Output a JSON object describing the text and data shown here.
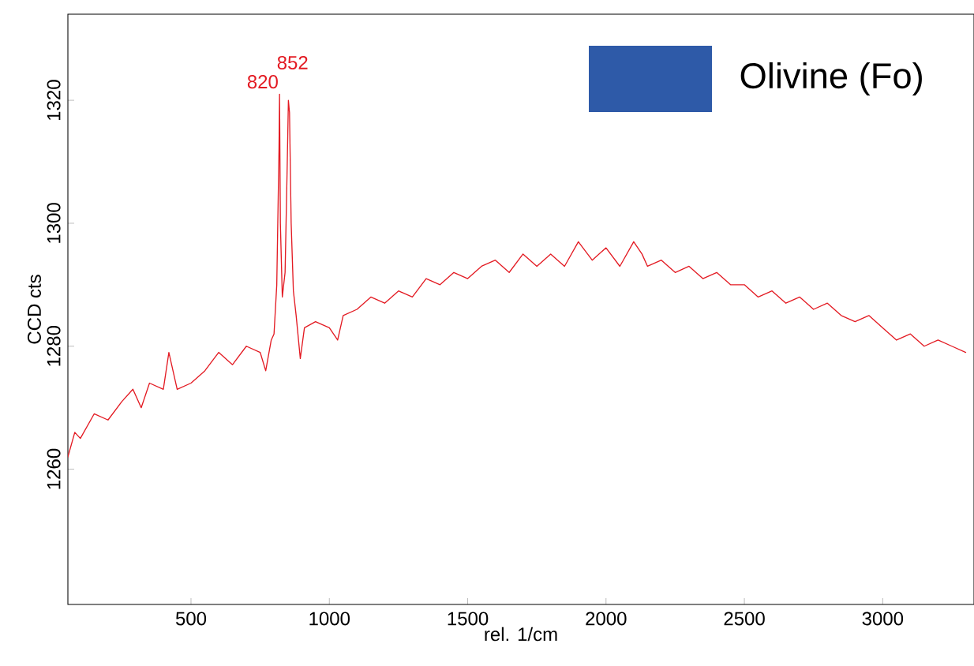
{
  "chart_data": {
    "type": "line",
    "xlabel": "rel. 1/cm",
    "ylabel": "CCD cts",
    "xlim": [
      55,
      3330
    ],
    "ylim": [
      1238,
      1334
    ],
    "xticks": [
      500,
      1000,
      1500,
      2000,
      2500,
      3000
    ],
    "yticks": [
      1260,
      1280,
      1300,
      1320
    ],
    "grid": false,
    "marker": "none",
    "line_style": "solid",
    "annotations": [
      {
        "text": "820",
        "x": 820,
        "y": 1321
      },
      {
        "text": "852",
        "x": 852,
        "y": 1320
      },
      "Olivine (Fo)"
    ],
    "x": [
      55,
      80,
      100,
      150,
      200,
      250,
      290,
      320,
      350,
      400,
      420,
      450,
      500,
      550,
      600,
      650,
      700,
      750,
      770,
      790,
      800,
      810,
      818,
      820,
      823,
      830,
      840,
      848,
      852,
      856,
      862,
      870,
      880,
      895,
      910,
      950,
      1000,
      1030,
      1050,
      1100,
      1150,
      1200,
      1250,
      1300,
      1350,
      1400,
      1450,
      1500,
      1550,
      1600,
      1650,
      1700,
      1750,
      1800,
      1850,
      1900,
      1950,
      2000,
      2050,
      2100,
      2130,
      2150,
      2200,
      2250,
      2300,
      2350,
      2400,
      2450,
      2500,
      2550,
      2600,
      2650,
      2700,
      2750,
      2800,
      2850,
      2900,
      2950,
      3000,
      3050,
      3100,
      3150,
      3200,
      3250,
      3300
    ],
    "series": [
      {
        "color": "#e31b23",
        "values": [
          1262,
          1266,
          1265,
          1269,
          1268,
          1271,
          1273,
          1270,
          1274,
          1273,
          1279,
          1273,
          1274,
          1276,
          1279,
          1277,
          1280,
          1279,
          1276,
          1281,
          1282,
          1290,
          1312,
          1321,
          1300,
          1288,
          1292,
          1310,
          1320,
          1318,
          1300,
          1289,
          1285,
          1278,
          1283,
          1284,
          1283,
          1281,
          1285,
          1286,
          1288,
          1287,
          1289,
          1288,
          1291,
          1290,
          1292,
          1291,
          1293,
          1294,
          1292,
          1295,
          1293,
          1295,
          1293,
          1297,
          1294,
          1296,
          1293,
          1297,
          1295,
          1293,
          1294,
          1292,
          1293,
          1291,
          1292,
          1290,
          1290,
          1288,
          1289,
          1287,
          1288,
          1286,
          1287,
          1285,
          1284,
          1285,
          1283,
          1281,
          1282,
          1280,
          1281,
          1280,
          1279
        ]
      }
    ]
  }
}
